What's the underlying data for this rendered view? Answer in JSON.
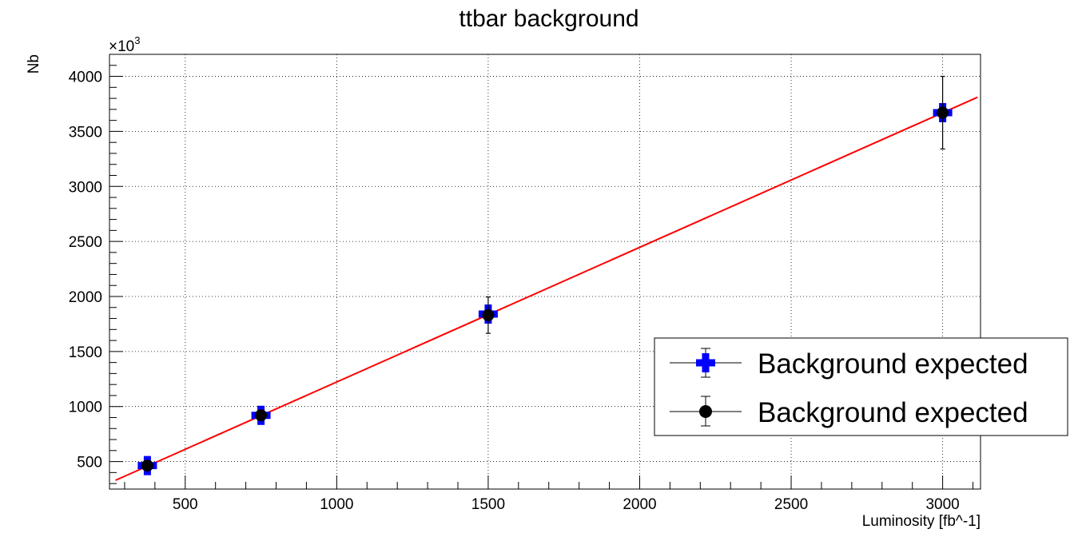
{
  "chart_data": {
    "type": "scatter",
    "title": "ttbar background",
    "xlabel": "Luminosity [fb^-1]",
    "ylabel": "Nb",
    "y_multiplier_label": "×10",
    "y_multiplier_exp": "3",
    "xlim": [
      250,
      3125
    ],
    "ylim": [
      250,
      4200
    ],
    "x_ticks": [
      500,
      1000,
      1500,
      2000,
      2500,
      3000
    ],
    "x_tick_labels": [
      "500",
      "1000",
      "1500",
      "2000",
      "2500",
      "3000"
    ],
    "y_ticks": [
      500,
      1000,
      1500,
      2000,
      2500,
      3000,
      3500,
      4000
    ],
    "y_tick_labels": [
      "500",
      "1000",
      "1500",
      "2000",
      "2500",
      "3000",
      "3500",
      "4000"
    ],
    "grid": true,
    "legend_position": "bottom-right",
    "series": [
      {
        "name": "Background expected",
        "marker": "cross",
        "color": "#0000ff",
        "x": [
          375,
          750,
          1500,
          3000
        ],
        "y": [
          463,
          920,
          1840,
          3670
        ],
        "yerr": [
          23,
          46,
          90,
          46
        ]
      },
      {
        "name": "Background expected",
        "marker": "circle",
        "color": "#000000",
        "x": [
          375,
          750,
          1500,
          3000
        ],
        "y": [
          463,
          920,
          1830,
          3670
        ],
        "yerr": [
          20,
          40,
          165,
          330
        ]
      }
    ],
    "fit_line": {
      "color": "#ff0000",
      "x": [
        270,
        3115
      ],
      "y": [
        330,
        3810
      ]
    }
  }
}
